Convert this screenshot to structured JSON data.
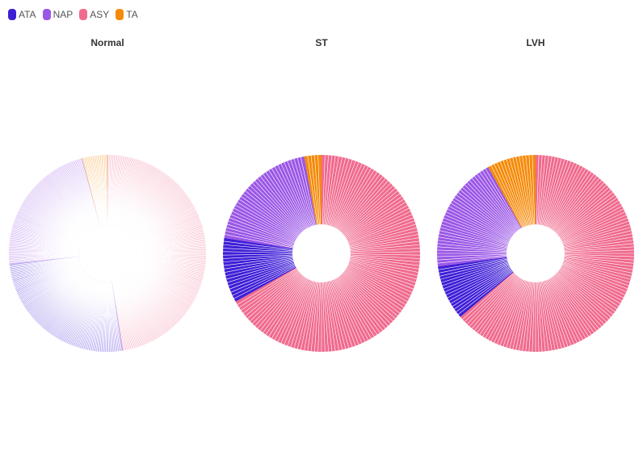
{
  "chart_data": {
    "type": "pie",
    "subtype": "donut-small-multiples",
    "legend": {
      "placement": "top-left",
      "items": [
        {
          "name": "ATA",
          "color": "#3f1fd6"
        },
        {
          "name": "NAP",
          "color": "#9b57e6"
        },
        {
          "name": "ASY",
          "color": "#f06b8e"
        },
        {
          "name": "TA",
          "color": "#f58b0a"
        }
      ]
    },
    "panels": [
      {
        "title": "Normal",
        "lightness": "faded",
        "slices": [
          {
            "name": "ASY",
            "value": 229
          },
          {
            "name": "ATA",
            "value": 124
          },
          {
            "name": "NAP",
            "value": 109
          },
          {
            "name": "TA",
            "value": 20
          }
        ]
      },
      {
        "title": "ST",
        "lightness": "full",
        "slices": [
          {
            "name": "ASY",
            "value": 119
          },
          {
            "name": "ATA",
            "value": 19
          },
          {
            "name": "NAP",
            "value": 35
          },
          {
            "name": "TA",
            "value": 5
          }
        ]
      },
      {
        "title": "LVH",
        "lightness": "full",
        "slices": [
          {
            "name": "ASY",
            "value": 120
          },
          {
            "name": "ATA",
            "value": 17
          },
          {
            "name": "NAP",
            "value": 36
          },
          {
            "name": "TA",
            "value": 15
          }
        ]
      }
    ]
  }
}
